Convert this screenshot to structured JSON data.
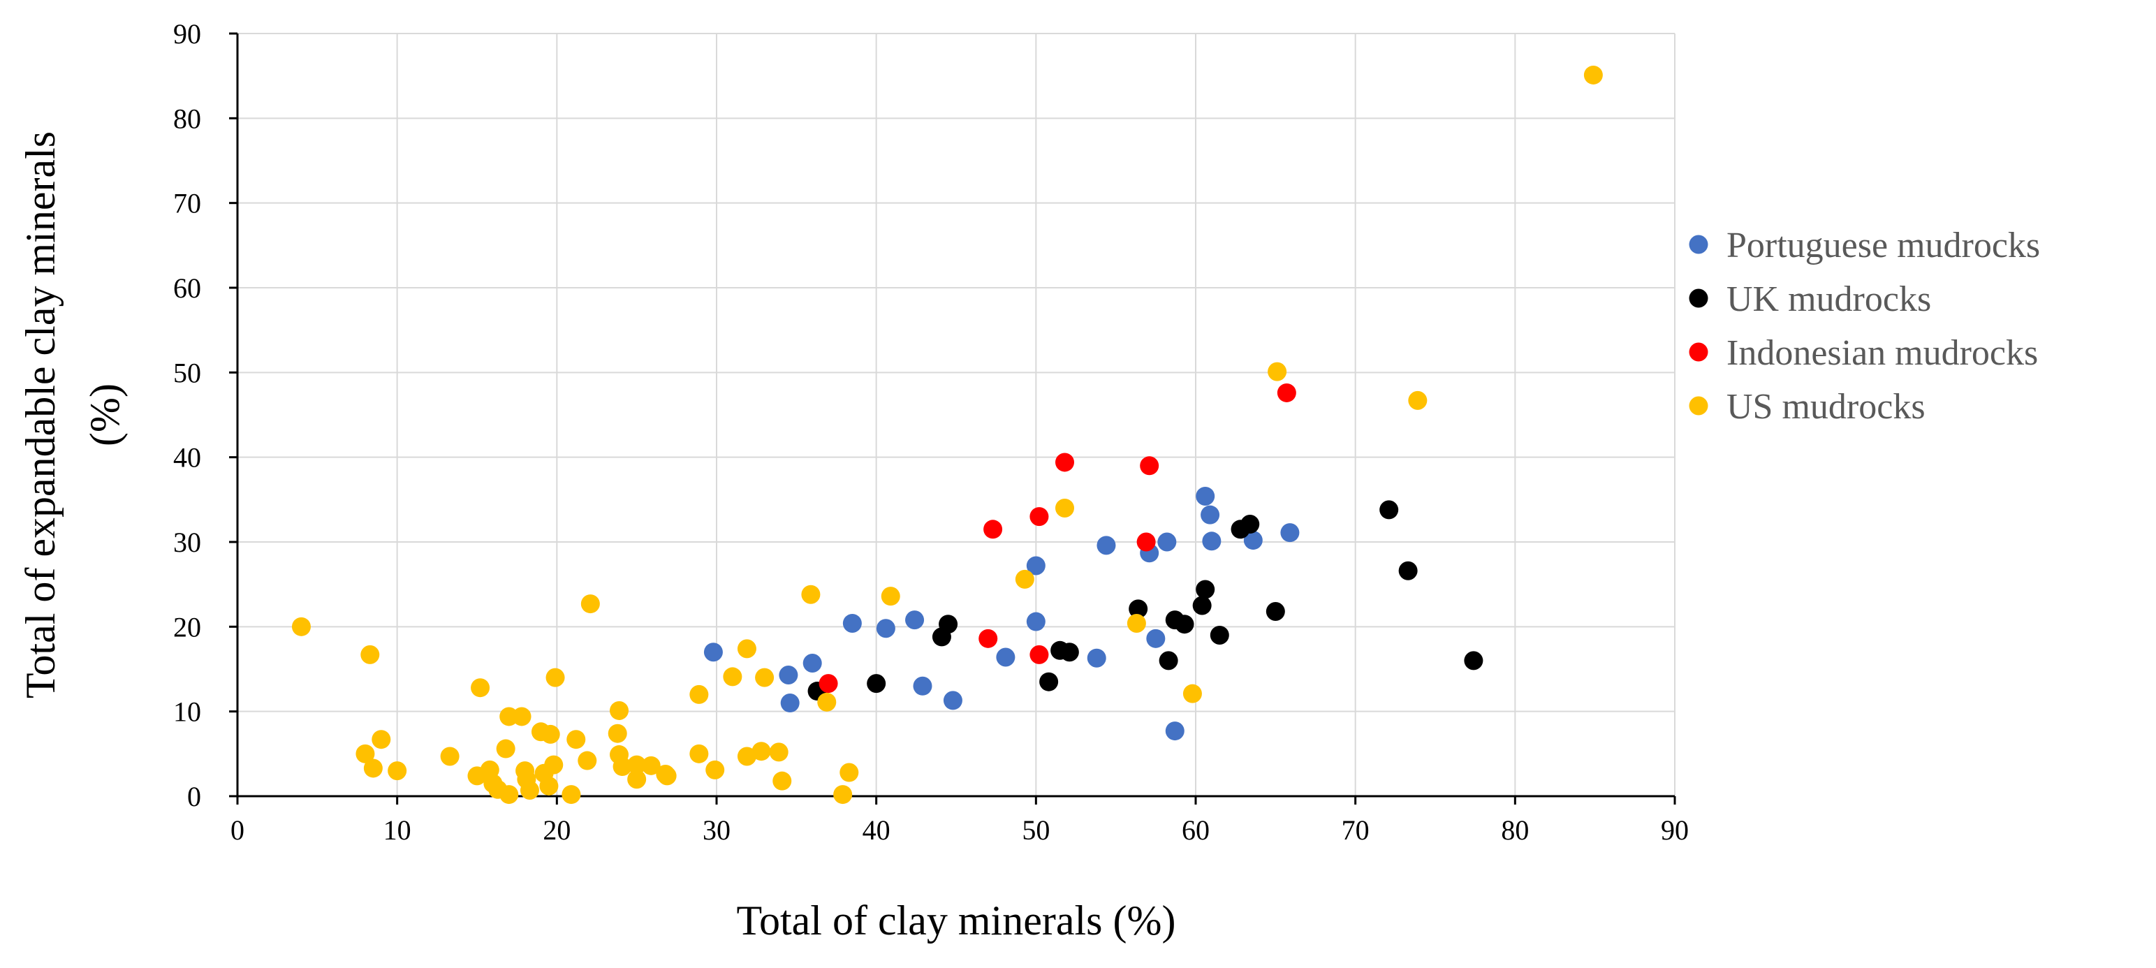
{
  "chart_data": {
    "type": "scatter",
    "title": "",
    "xlabel": "Total of clay minerals (%)",
    "ylabel_line1": "Total of expandable clay minerals",
    "ylabel_line2": "(%)",
    "xlim": [
      0,
      90
    ],
    "ylim": [
      0,
      90
    ],
    "xticks": [
      "0",
      "10",
      "20",
      "30",
      "40",
      "50",
      "60",
      "70",
      "80",
      "90"
    ],
    "yticks": [
      "0",
      "10",
      "20",
      "30",
      "40",
      "50",
      "60",
      "70",
      "80",
      "90"
    ],
    "grid": true,
    "legend_position": "right",
    "series": [
      {
        "name": "Portuguese mudrocks",
        "color": "#4472C4",
        "points": [
          [
            29.8,
            17.0
          ],
          [
            34.5,
            14.3
          ],
          [
            34.6,
            11.0
          ],
          [
            36.0,
            15.7
          ],
          [
            38.5,
            20.4
          ],
          [
            40.6,
            19.8
          ],
          [
            42.4,
            20.8
          ],
          [
            42.9,
            13.0
          ],
          [
            44.8,
            11.3
          ],
          [
            48.1,
            16.4
          ],
          [
            50.0,
            27.2
          ],
          [
            50.0,
            20.6
          ],
          [
            53.8,
            16.3
          ],
          [
            54.4,
            29.6
          ],
          [
            57.1,
            28.7
          ],
          [
            57.5,
            18.6
          ],
          [
            58.2,
            30.0
          ],
          [
            58.7,
            7.7
          ],
          [
            60.6,
            35.4
          ],
          [
            60.9,
            33.2
          ],
          [
            61.0,
            30.1
          ],
          [
            63.6,
            30.2
          ],
          [
            65.9,
            31.1
          ]
        ]
      },
      {
        "name": "UK mudrocks",
        "color": "#000000",
        "points": [
          [
            36.3,
            12.4
          ],
          [
            40.0,
            13.3
          ],
          [
            44.1,
            18.8
          ],
          [
            44.5,
            20.3
          ],
          [
            50.8,
            13.5
          ],
          [
            51.5,
            17.2
          ],
          [
            52.1,
            17.0
          ],
          [
            56.4,
            22.1
          ],
          [
            58.3,
            16.0
          ],
          [
            58.7,
            20.8
          ],
          [
            59.3,
            20.3
          ],
          [
            60.4,
            22.5
          ],
          [
            60.6,
            24.4
          ],
          [
            61.5,
            19.0
          ],
          [
            62.8,
            31.5
          ],
          [
            63.4,
            32.1
          ],
          [
            65.0,
            21.8
          ],
          [
            72.1,
            33.8
          ],
          [
            73.3,
            26.6
          ],
          [
            77.4,
            16.0
          ]
        ]
      },
      {
        "name": "Indonesian mudrocks",
        "color": "#FF0000",
        "points": [
          [
            37.0,
            13.3
          ],
          [
            47.0,
            18.6
          ],
          [
            47.3,
            31.5
          ],
          [
            50.2,
            33.0
          ],
          [
            50.2,
            16.7
          ],
          [
            51.8,
            39.4
          ],
          [
            56.9,
            30.0
          ],
          [
            57.1,
            39.0
          ],
          [
            65.7,
            47.6
          ]
        ]
      },
      {
        "name": "US mudrocks",
        "color": "#FFC000",
        "points": [
          [
            4.0,
            20.0
          ],
          [
            8.0,
            5.0
          ],
          [
            8.3,
            16.7
          ],
          [
            8.5,
            3.3
          ],
          [
            9.0,
            6.7
          ],
          [
            10.0,
            3.0
          ],
          [
            13.3,
            4.7
          ],
          [
            15.0,
            2.4
          ],
          [
            15.2,
            12.8
          ],
          [
            15.8,
            3.1
          ],
          [
            16.0,
            1.5
          ],
          [
            16.3,
            0.8
          ],
          [
            16.8,
            5.6
          ],
          [
            17.0,
            9.4
          ],
          [
            17.0,
            0.2
          ],
          [
            17.8,
            9.4
          ],
          [
            18.0,
            3.0
          ],
          [
            18.1,
            2.0
          ],
          [
            18.3,
            0.7
          ],
          [
            19.0,
            7.6
          ],
          [
            19.2,
            2.7
          ],
          [
            19.5,
            1.2
          ],
          [
            19.6,
            7.3
          ],
          [
            19.8,
            3.7
          ],
          [
            19.9,
            14.0
          ],
          [
            20.9,
            0.2
          ],
          [
            21.2,
            6.7
          ],
          [
            21.9,
            4.2
          ],
          [
            22.1,
            22.7
          ],
          [
            23.8,
            7.4
          ],
          [
            23.9,
            10.1
          ],
          [
            23.9,
            4.9
          ],
          [
            24.1,
            3.5
          ],
          [
            25.0,
            3.7
          ],
          [
            25.0,
            2.0
          ],
          [
            25.9,
            3.6
          ],
          [
            26.8,
            2.6
          ],
          [
            26.9,
            2.4
          ],
          [
            28.9,
            12.0
          ],
          [
            28.9,
            5.0
          ],
          [
            29.9,
            3.1
          ],
          [
            31.0,
            14.1
          ],
          [
            31.9,
            17.4
          ],
          [
            31.9,
            4.7
          ],
          [
            32.8,
            5.3
          ],
          [
            33.0,
            14.0
          ],
          [
            33.9,
            5.2
          ],
          [
            34.1,
            1.8
          ],
          [
            35.9,
            23.8
          ],
          [
            36.9,
            11.1
          ],
          [
            37.9,
            0.2
          ],
          [
            38.3,
            2.8
          ],
          [
            40.9,
            23.6
          ],
          [
            49.3,
            25.6
          ],
          [
            51.8,
            34.0
          ],
          [
            56.3,
            20.4
          ],
          [
            59.8,
            12.1
          ],
          [
            65.1,
            50.1
          ],
          [
            73.9,
            46.7
          ],
          [
            84.9,
            85.1
          ]
        ]
      }
    ]
  }
}
